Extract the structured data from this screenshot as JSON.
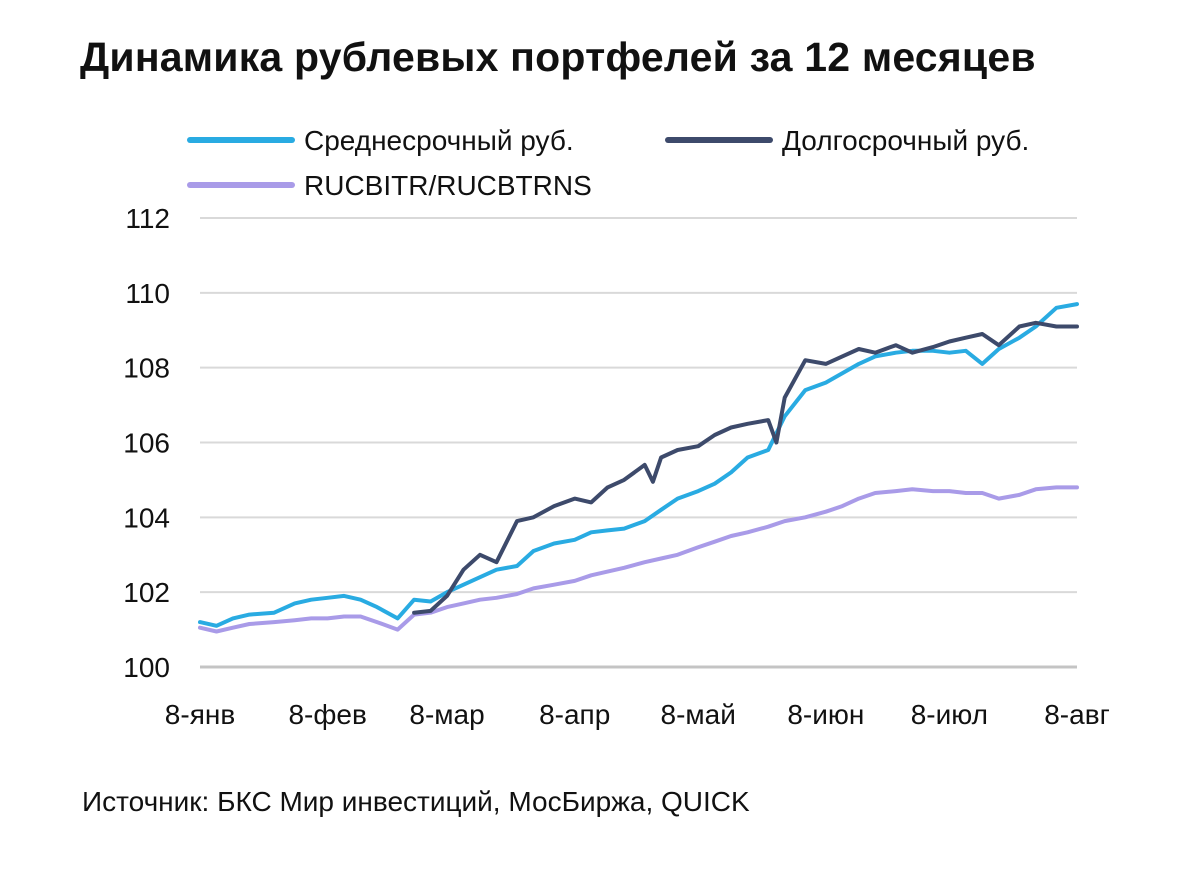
{
  "title": "Динамика рублевых портфелей за 12 месяцев",
  "source": "Источник: БКС Мир инвестиций, МосБиржа, QUICK",
  "chart_data": {
    "type": "line",
    "title": "Динамика рублевых портфелей за 12 месяцев",
    "xlabel": "",
    "ylabel": "",
    "x_ticks": [
      "8-янв",
      "8-фев",
      "8-мар",
      "8-апр",
      "8-май",
      "8-июн",
      "8-июл",
      "8-авг"
    ],
    "y_ticks": [
      "100",
      "102",
      "104",
      "106",
      "108",
      "110",
      "112"
    ],
    "ylim": [
      100,
      112
    ],
    "grid": true,
    "legend_position": "top",
    "series": [
      {
        "name": "Среднесрочный руб.",
        "color": "#29ABE2",
        "points": [
          [
            "8-янв",
            101.2
          ],
          [
            "12-янв",
            101.1
          ],
          [
            "16-янв",
            101.3
          ],
          [
            "20-янв",
            101.4
          ],
          [
            "26-янв",
            101.45
          ],
          [
            "31-янв",
            101.7
          ],
          [
            "4-фев",
            101.8
          ],
          [
            "8-фев",
            101.85
          ],
          [
            "12-фев",
            101.9
          ],
          [
            "16-фев",
            101.8
          ],
          [
            "20-фев",
            101.6
          ],
          [
            "25-фев",
            101.3
          ],
          [
            "29-фев",
            101.8
          ],
          [
            "4-мар",
            101.75
          ],
          [
            "8-мар",
            102.0
          ],
          [
            "12-мар",
            102.2
          ],
          [
            "16-мар",
            102.4
          ],
          [
            "20-мар",
            102.6
          ],
          [
            "25-мар",
            102.7
          ],
          [
            "29-мар",
            103.1
          ],
          [
            "3-апр",
            103.3
          ],
          [
            "8-апр",
            103.4
          ],
          [
            "12-апр",
            103.6
          ],
          [
            "16-апр",
            103.65
          ],
          [
            "20-апр",
            103.7
          ],
          [
            "25-апр",
            103.9
          ],
          [
            "29-апр",
            104.2
          ],
          [
            "3-май",
            104.5
          ],
          [
            "8-май",
            104.7
          ],
          [
            "12-май",
            104.9
          ],
          [
            "16-май",
            105.2
          ],
          [
            "20-май",
            105.6
          ],
          [
            "25-май",
            105.8
          ],
          [
            "29-май",
            106.7
          ],
          [
            "3-июн",
            107.4
          ],
          [
            "8-июн",
            107.6
          ],
          [
            "12-июн",
            107.85
          ],
          [
            "16-июн",
            108.1
          ],
          [
            "20-июн",
            108.3
          ],
          [
            "25-июн",
            108.4
          ],
          [
            "29-июн",
            108.45
          ],
          [
            "4-июл",
            108.45
          ],
          [
            "8-июл",
            108.4
          ],
          [
            "12-июл",
            108.45
          ],
          [
            "16-июл",
            108.1
          ],
          [
            "20-июл",
            108.5
          ],
          [
            "25-июл",
            108.8
          ],
          [
            "29-июл",
            109.1
          ],
          [
            "3-авг",
            109.6
          ],
          [
            "8-авг",
            109.7
          ]
        ]
      },
      {
        "name": "Долгосрочный руб.",
        "color": "#3D4A6B",
        "points": [
          [
            "29-фев",
            101.45
          ],
          [
            "4-мар",
            101.5
          ],
          [
            "8-мар",
            101.9
          ],
          [
            "12-мар",
            102.6
          ],
          [
            "16-мар",
            103.0
          ],
          [
            "20-мар",
            102.8
          ],
          [
            "25-мар",
            103.9
          ],
          [
            "29-мар",
            104.0
          ],
          [
            "3-апр",
            104.3
          ],
          [
            "8-апр",
            104.5
          ],
          [
            "12-апр",
            104.4
          ],
          [
            "16-апр",
            104.8
          ],
          [
            "20-апр",
            105.0
          ],
          [
            "25-апр",
            105.4
          ],
          [
            "27-апр",
            104.95
          ],
          [
            "29-апр",
            105.6
          ],
          [
            "3-май",
            105.8
          ],
          [
            "8-май",
            105.9
          ],
          [
            "12-май",
            106.2
          ],
          [
            "16-май",
            106.4
          ],
          [
            "20-май",
            106.5
          ],
          [
            "25-май",
            106.6
          ],
          [
            "27-май",
            106.0
          ],
          [
            "29-май",
            107.2
          ],
          [
            "3-июн",
            108.2
          ],
          [
            "8-июн",
            108.1
          ],
          [
            "12-июн",
            108.3
          ],
          [
            "16-июн",
            108.5
          ],
          [
            "20-июн",
            108.4
          ],
          [
            "25-июн",
            108.6
          ],
          [
            "29-июн",
            108.4
          ],
          [
            "4-июл",
            108.55
          ],
          [
            "8-июл",
            108.7
          ],
          [
            "12-июл",
            108.8
          ],
          [
            "16-июл",
            108.9
          ],
          [
            "20-июл",
            108.6
          ],
          [
            "25-июл",
            109.1
          ],
          [
            "29-июл",
            109.2
          ],
          [
            "3-авг",
            109.1
          ],
          [
            "8-авг",
            109.1
          ]
        ]
      },
      {
        "name": "RUCBITR/RUCBTRNS",
        "color": "#A99BE8",
        "points": [
          [
            "8-янв",
            101.05
          ],
          [
            "12-янв",
            100.95
          ],
          [
            "16-янв",
            101.05
          ],
          [
            "20-янв",
            101.15
          ],
          [
            "26-янв",
            101.2
          ],
          [
            "31-янв",
            101.25
          ],
          [
            "4-фев",
            101.3
          ],
          [
            "8-фев",
            101.3
          ],
          [
            "12-фев",
            101.35
          ],
          [
            "16-фев",
            101.35
          ],
          [
            "20-фев",
            101.2
          ],
          [
            "25-фев",
            101.0
          ],
          [
            "29-фев",
            101.4
          ],
          [
            "4-мар",
            101.45
          ],
          [
            "8-мар",
            101.6
          ],
          [
            "12-мар",
            101.7
          ],
          [
            "16-мар",
            101.8
          ],
          [
            "20-мар",
            101.85
          ],
          [
            "25-мар",
            101.95
          ],
          [
            "29-мар",
            102.1
          ],
          [
            "3-апр",
            102.2
          ],
          [
            "8-апр",
            102.3
          ],
          [
            "12-апр",
            102.45
          ],
          [
            "16-апр",
            102.55
          ],
          [
            "20-апр",
            102.65
          ],
          [
            "25-апр",
            102.8
          ],
          [
            "29-апр",
            102.9
          ],
          [
            "3-май",
            103.0
          ],
          [
            "8-май",
            103.2
          ],
          [
            "12-май",
            103.35
          ],
          [
            "16-май",
            103.5
          ],
          [
            "20-май",
            103.6
          ],
          [
            "25-май",
            103.75
          ],
          [
            "29-май",
            103.9
          ],
          [
            "3-июн",
            104.0
          ],
          [
            "8-июн",
            104.15
          ],
          [
            "12-июн",
            104.3
          ],
          [
            "16-июн",
            104.5
          ],
          [
            "20-июн",
            104.65
          ],
          [
            "25-июн",
            104.7
          ],
          [
            "29-июн",
            104.75
          ],
          [
            "4-июл",
            104.7
          ],
          [
            "8-июл",
            104.7
          ],
          [
            "12-июл",
            104.65
          ],
          [
            "16-июл",
            104.65
          ],
          [
            "20-июл",
            104.5
          ],
          [
            "25-июл",
            104.6
          ],
          [
            "29-июл",
            104.75
          ],
          [
            "3-авг",
            104.8
          ],
          [
            "8-авг",
            104.8
          ]
        ]
      }
    ]
  }
}
